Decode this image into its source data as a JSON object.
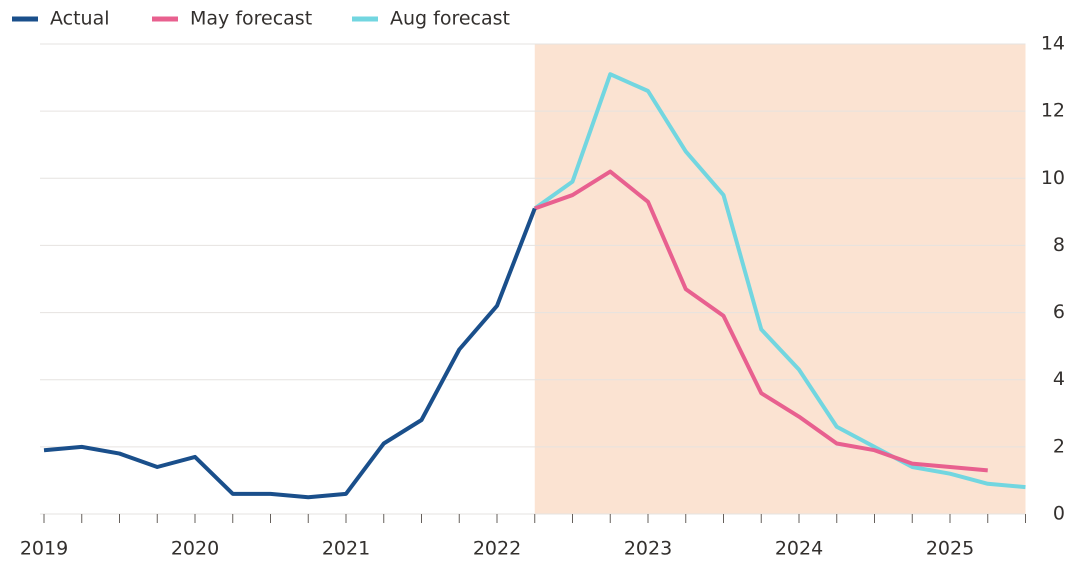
{
  "chart_data": {
    "type": "line",
    "x": [
      2019,
      2019.25,
      2019.5,
      2019.75,
      2020,
      2020.25,
      2020.5,
      2020.75,
      2021,
      2021.25,
      2021.5,
      2021.75,
      2022,
      2022.25,
      2022.5,
      2022.75,
      2023,
      2023.25,
      2023.5,
      2023.75,
      2024,
      2024.25,
      2024.5,
      2024.75,
      2025,
      2025.25,
      2025.5
    ],
    "series": [
      {
        "name": "Actual",
        "color": "#1a4f8b",
        "values": [
          1.9,
          2.0,
          1.8,
          1.4,
          1.7,
          0.6,
          0.6,
          0.5,
          0.6,
          2.1,
          2.8,
          4.9,
          6.2,
          9.1,
          null,
          null,
          null,
          null,
          null,
          null,
          null,
          null,
          null,
          null,
          null,
          null,
          null
        ]
      },
      {
        "name": "May forecast",
        "color": "#e8608f",
        "values": [
          null,
          null,
          null,
          null,
          null,
          null,
          null,
          null,
          null,
          null,
          null,
          null,
          null,
          9.1,
          9.5,
          10.2,
          9.3,
          6.7,
          5.9,
          3.6,
          2.9,
          2.1,
          1.9,
          1.5,
          1.4,
          1.3,
          null
        ]
      },
      {
        "name": "Aug forecast",
        "color": "#72d6e0",
        "values": [
          null,
          null,
          null,
          null,
          null,
          null,
          null,
          null,
          null,
          null,
          null,
          null,
          null,
          9.1,
          9.9,
          13.1,
          12.6,
          10.8,
          9.5,
          5.5,
          4.3,
          2.6,
          2.0,
          1.4,
          1.2,
          0.9,
          0.8
        ]
      }
    ],
    "xlim": [
      2019,
      2025.5
    ],
    "xticks": [
      2019,
      2020,
      2021,
      2022,
      2023,
      2024,
      2025
    ],
    "ylim": [
      0,
      14
    ],
    "yticks": [
      0,
      2,
      4,
      6,
      8,
      10,
      12,
      14
    ],
    "grid": true,
    "legend": "top-left",
    "highlight_range": [
      2022.25,
      2025.5
    ],
    "highlight_color": "#fbe3d2"
  }
}
